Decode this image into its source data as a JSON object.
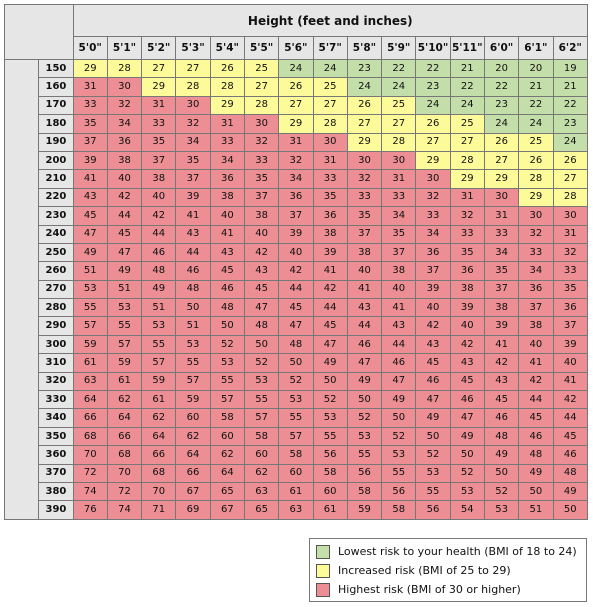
{
  "chart_data": {
    "type": "table",
    "title": "Height (feet and inches)",
    "xlabel": "Height (feet and inches)",
    "ylabel": "Weight (pounds)",
    "heights": [
      "5'0\"",
      "5'1\"",
      "5'2\"",
      "5'3\"",
      "5'4\"",
      "5'5\"",
      "5'6\"",
      "5'7\"",
      "5'8\"",
      "5'9\"",
      "5'10\"",
      "5'11\"",
      "6'0\"",
      "6'1\"",
      "6'2\""
    ],
    "weights": [
      "150",
      "160",
      "170",
      "180",
      "190",
      "200",
      "210",
      "220",
      "230",
      "240",
      "250",
      "260",
      "270",
      "280",
      "290",
      "300",
      "310",
      "320",
      "330",
      "340",
      "350",
      "360",
      "370",
      "380",
      "390"
    ],
    "values": [
      [
        29,
        28,
        27,
        27,
        26,
        25,
        24,
        24,
        23,
        22,
        22,
        21,
        20,
        20,
        19
      ],
      [
        31,
        30,
        29,
        28,
        28,
        27,
        26,
        25,
        24,
        24,
        23,
        22,
        22,
        21,
        21
      ],
      [
        33,
        32,
        31,
        30,
        29,
        28,
        27,
        27,
        26,
        25,
        24,
        24,
        23,
        22,
        22
      ],
      [
        35,
        34,
        33,
        32,
        31,
        30,
        29,
        28,
        27,
        27,
        26,
        25,
        24,
        24,
        23
      ],
      [
        37,
        36,
        35,
        34,
        33,
        32,
        31,
        30,
        29,
        28,
        27,
        27,
        26,
        25,
        24
      ],
      [
        39,
        38,
        37,
        35,
        34,
        33,
        32,
        31,
        30,
        30,
        29,
        28,
        27,
        26,
        26
      ],
      [
        41,
        40,
        38,
        37,
        36,
        35,
        34,
        33,
        32,
        31,
        30,
        29,
        29,
        28,
        27
      ],
      [
        43,
        42,
        40,
        39,
        38,
        37,
        36,
        35,
        33,
        33,
        32,
        31,
        30,
        29,
        28
      ],
      [
        45,
        44,
        42,
        41,
        40,
        38,
        37,
        36,
        35,
        34,
        33,
        32,
        31,
        30,
        30
      ],
      [
        47,
        45,
        44,
        43,
        41,
        40,
        39,
        38,
        37,
        35,
        34,
        33,
        33,
        32,
        31
      ],
      [
        49,
        47,
        46,
        44,
        43,
        42,
        40,
        39,
        38,
        37,
        36,
        35,
        34,
        33,
        32
      ],
      [
        51,
        49,
        48,
        46,
        45,
        43,
        42,
        41,
        40,
        38,
        37,
        36,
        35,
        34,
        33
      ],
      [
        53,
        51,
        49,
        48,
        46,
        45,
        44,
        42,
        41,
        40,
        39,
        38,
        37,
        36,
        35
      ],
      [
        55,
        53,
        51,
        50,
        48,
        47,
        45,
        44,
        43,
        41,
        40,
        39,
        38,
        37,
        36
      ],
      [
        57,
        55,
        53,
        51,
        50,
        48,
        47,
        45,
        44,
        43,
        42,
        40,
        39,
        38,
        37
      ],
      [
        59,
        57,
        55,
        53,
        52,
        50,
        48,
        47,
        46,
        44,
        43,
        42,
        41,
        40,
        39
      ],
      [
        61,
        59,
        57,
        55,
        53,
        52,
        50,
        49,
        47,
        46,
        45,
        43,
        42,
        41,
        40
      ],
      [
        63,
        61,
        59,
        57,
        55,
        53,
        52,
        50,
        49,
        47,
        46,
        45,
        43,
        42,
        41
      ],
      [
        64,
        62,
        61,
        59,
        57,
        55,
        53,
        52,
        50,
        49,
        47,
        46,
        45,
        44,
        42
      ],
      [
        66,
        64,
        62,
        60,
        58,
        57,
        55,
        53,
        52,
        50,
        49,
        47,
        46,
        45,
        44
      ],
      [
        68,
        66,
        64,
        62,
        60,
        58,
        57,
        55,
        53,
        52,
        50,
        49,
        48,
        46,
        45
      ],
      [
        70,
        68,
        66,
        64,
        62,
        60,
        58,
        56,
        55,
        53,
        52,
        50,
        49,
        48,
        46
      ],
      [
        72,
        70,
        68,
        66,
        64,
        62,
        60,
        58,
        56,
        55,
        53,
        52,
        50,
        49,
        48
      ],
      [
        74,
        72,
        70,
        67,
        65,
        63,
        61,
        60,
        58,
        56,
        55,
        53,
        52,
        50,
        49
      ],
      [
        76,
        74,
        71,
        69,
        67,
        65,
        63,
        61,
        59,
        58,
        56,
        54,
        53,
        51,
        50
      ]
    ],
    "legend": [
      {
        "label": "Lowest risk to your health (BMI of 18 to 24)",
        "color": "#c4deaa"
      },
      {
        "label": "Increased risk (BMI of 25 to 29)",
        "color": "#fdfb99"
      },
      {
        "label": "Highest risk (BMI of 30 or higher)",
        "color": "#ec8e93"
      }
    ],
    "legend_placement": "bottom-right"
  }
}
